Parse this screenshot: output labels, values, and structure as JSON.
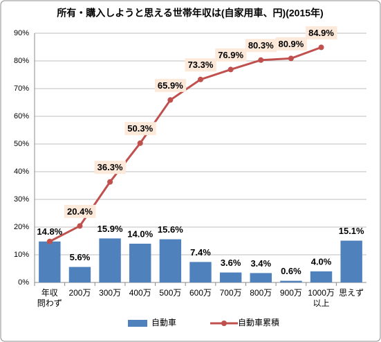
{
  "chart_data": {
    "type": "combo",
    "title": "所有・購入しようと思える世帯年収は(自家用車、円)(2015年)",
    "categories": [
      "年収\n問わず",
      "200万",
      "300万",
      "400万",
      "500万",
      "600万",
      "700万",
      "800万",
      "900万",
      "1000万\n以上",
      "思えず"
    ],
    "series": [
      {
        "name": "自動車",
        "type": "bar",
        "color": "#4f81bd",
        "values": [
          14.8,
          5.6,
          15.9,
          14.0,
          15.6,
          7.4,
          3.6,
          3.4,
          0.6,
          4.0,
          15.1
        ],
        "value_labels": [
          "14.8%",
          "5.6%",
          "15.9%",
          "14.0%",
          "15.6%",
          "7.4%",
          "3.6%",
          "3.4%",
          "0.6%",
          "4.0%",
          "15.1%"
        ]
      },
      {
        "name": "自動車累積",
        "type": "line",
        "color": "#c0504d",
        "values": [
          14.8,
          20.4,
          36.3,
          50.3,
          65.9,
          73.3,
          76.9,
          80.3,
          80.9,
          84.9,
          null
        ],
        "value_labels": [
          null,
          "20.4%",
          "36.3%",
          "50.3%",
          "65.9%",
          "73.3%",
          "76.9%",
          "80.3%",
          "80.9%",
          "84.9%",
          null
        ]
      }
    ],
    "ylim": [
      0,
      90
    ],
    "yticks": [
      {
        "value": 0,
        "label": "0%"
      },
      {
        "value": 10,
        "label": "10%"
      },
      {
        "value": 20,
        "label": "20%"
      },
      {
        "value": 30,
        "label": "30%"
      },
      {
        "value": 40,
        "label": "40%"
      },
      {
        "value": 50,
        "label": "50%"
      },
      {
        "value": 60,
        "label": "60%"
      },
      {
        "value": 70,
        "label": "70%"
      },
      {
        "value": 80,
        "label": "80%"
      },
      {
        "value": 90,
        "label": "90%"
      }
    ],
    "grid": true,
    "legend": "bottom"
  }
}
